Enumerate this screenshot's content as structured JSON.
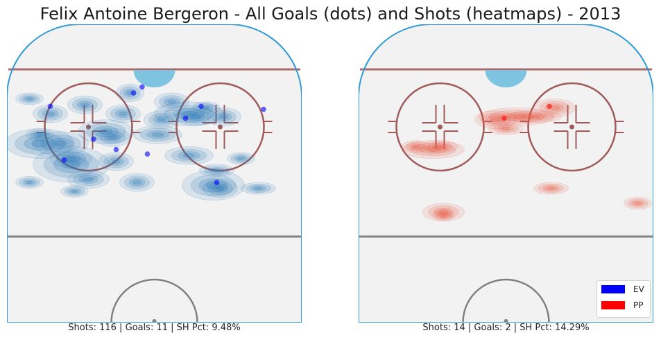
{
  "title": "Felix Antoine Bergeron - All Goals (dots) and Shots (heatmaps) - 2013",
  "colors": {
    "ev": "#0000ff",
    "pp": "#ff0000",
    "ice": "#f2f2f2",
    "boards": "#2e9bd4",
    "goal_line": "#a86a6a",
    "circle": "#a05a5a",
    "center_line": "#808080",
    "crease": "#7ec4e0"
  },
  "legend": {
    "placement": "bottom-right",
    "items": [
      {
        "label": "EV",
        "color": "#0000ff"
      },
      {
        "label": "PP",
        "color": "#ff0000"
      }
    ]
  },
  "chart_data": [
    {
      "type": "scatter",
      "subplot": "ev",
      "caption": "Shots: 116 | Goals: 11 | SH Pct: 9.48%",
      "shots": 116,
      "goals": 11,
      "sh_pct": 9.48,
      "grid": false,
      "points": [
        {
          "x": -3.5,
          "y": 79.0
        },
        {
          "x": -6.0,
          "y": 77.0
        },
        {
          "x": -30.0,
          "y": 72.5
        },
        {
          "x": 13.5,
          "y": 72.5
        },
        {
          "x": 31.5,
          "y": 71.5
        },
        {
          "x": 9.0,
          "y": 68.5
        },
        {
          "x": -17.5,
          "y": 61.5
        },
        {
          "x": -11.0,
          "y": 58.0
        },
        {
          "x": -2.0,
          "y": 56.5
        },
        {
          "x": -26.0,
          "y": 54.5
        },
        {
          "x": 18.0,
          "y": 47.0
        }
      ]
    },
    {
      "type": "scatter",
      "subplot": "pp",
      "caption": "Shots: 14 | Goals: 2 | SH Pct: 14.29%",
      "shots": 14,
      "goals": 2,
      "sh_pct": 14.29,
      "grid": false,
      "points": [
        {
          "x": 12.5,
          "y": 72.5
        },
        {
          "x": -0.5,
          "y": 68.5
        }
      ]
    }
  ]
}
